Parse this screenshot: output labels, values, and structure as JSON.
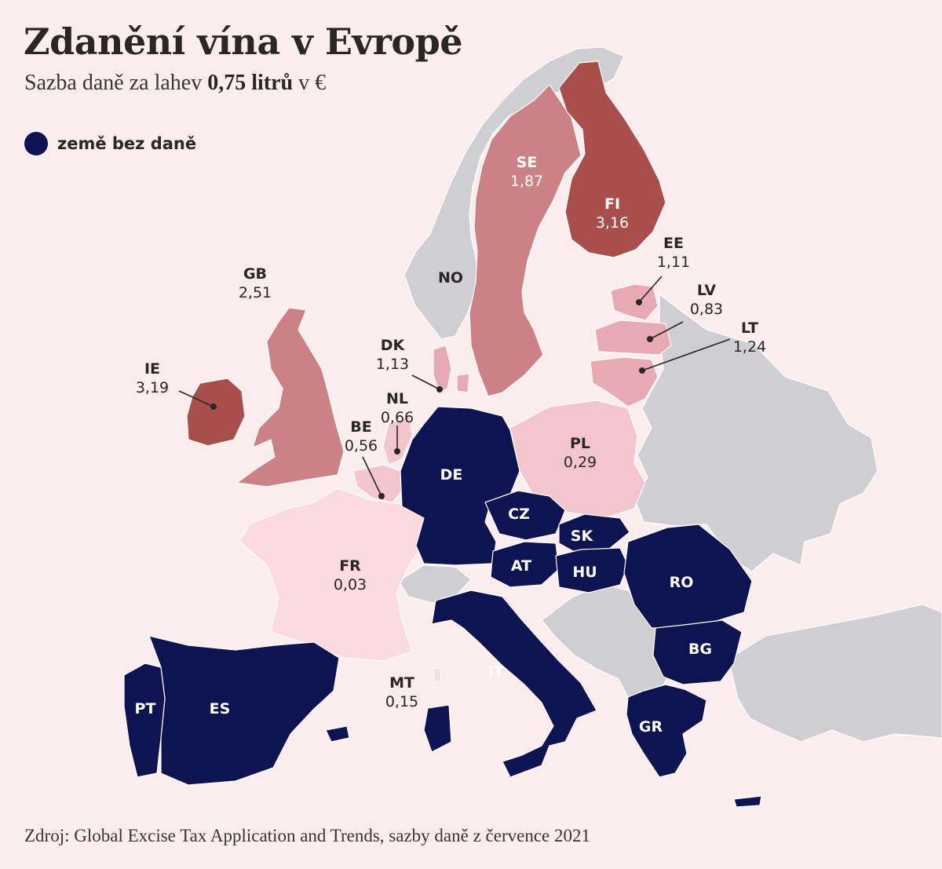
{
  "title": "Zdanění vína v Evropě",
  "subtitle": {
    "prefix": "Sazba daně za lahev ",
    "bold": "0,75 litrů",
    "suffix": " v €"
  },
  "legend": {
    "label": "země bez daně",
    "color": "#0e1452"
  },
  "source": "Zdroj: Global Excise Tax Application and Trends, sazby daně z července 2021",
  "colors": {
    "background": "#fbeced",
    "no_data": "#cfcfd3",
    "no_tax": "#0e1452",
    "scale": [
      "#fbdbe0",
      "#f3c6cd",
      "#e7a9b2",
      "#cc8285",
      "#a84f4c"
    ]
  },
  "countries": [
    {
      "code": "SE",
      "value": "1,87"
    },
    {
      "code": "FI",
      "value": "3,16"
    },
    {
      "code": "EE",
      "value": "1,11"
    },
    {
      "code": "LV",
      "value": "0,83"
    },
    {
      "code": "LT",
      "value": "1,24"
    },
    {
      "code": "GB",
      "value": "2,51"
    },
    {
      "code": "IE",
      "value": "3,19"
    },
    {
      "code": "DK",
      "value": "1,13"
    },
    {
      "code": "NL",
      "value": "0,66"
    },
    {
      "code": "BE",
      "value": "0,56"
    },
    {
      "code": "PL",
      "value": "0,29"
    },
    {
      "code": "FR",
      "value": "0,03"
    },
    {
      "code": "MT",
      "value": "0,15"
    },
    {
      "code": "NO",
      "value": ""
    },
    {
      "code": "DE",
      "value": ""
    },
    {
      "code": "CZ",
      "value": ""
    },
    {
      "code": "SK",
      "value": ""
    },
    {
      "code": "AT",
      "value": ""
    },
    {
      "code": "HU",
      "value": ""
    },
    {
      "code": "RO",
      "value": ""
    },
    {
      "code": "BG",
      "value": ""
    },
    {
      "code": "IT",
      "value": ""
    },
    {
      "code": "ES",
      "value": ""
    },
    {
      "code": "PT",
      "value": ""
    },
    {
      "code": "GR",
      "value": ""
    }
  ]
}
